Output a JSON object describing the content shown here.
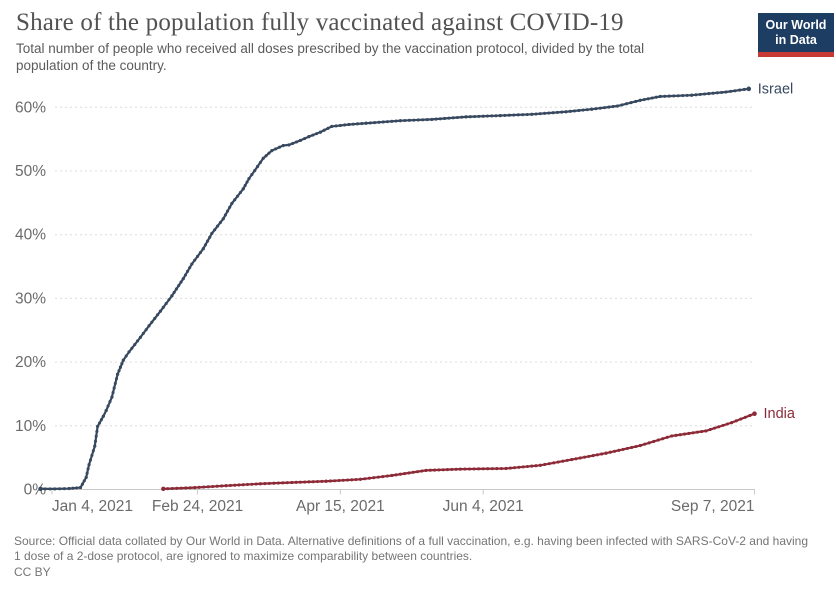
{
  "header": {
    "title": "Share of the population fully vaccinated against COVID-19",
    "subtitle": "Total number of people who received all doses prescribed by the vaccination protocol, divided by the total population of the country.",
    "logo": {
      "line1": "Our World",
      "line2": "in Data"
    }
  },
  "footer": {
    "source": "Source: Official data collated by Our World in Data. Alternative definitions of a full vaccination, e.g. having been infected with SARS-CoV-2 and having 1 dose of a 2-dose protocol, are ignored to maximize comparability between countries.",
    "license": "CC BY"
  },
  "colors": {
    "logo_background": "#1d3d63",
    "logo_bar": "#c73a33",
    "axis_text": "#6b6b6b",
    "gridline": "#dcdcdc",
    "axis_line": "#c8c8c8"
  },
  "chart_data": {
    "type": "line",
    "title": "Share of the population fully vaccinated against COVID-19",
    "xlabel": "",
    "ylabel": "",
    "grid": true,
    "legend_position": "end-of-line-labels",
    "day_zero": "2020-12-31",
    "x_axis": {
      "unit": "date",
      "ticks": [
        {
          "day": 4,
          "label": "Jan 4, 2021",
          "align": "start"
        },
        {
          "day": 55,
          "label": "Feb 24, 2021",
          "align": "middle"
        },
        {
          "day": 105,
          "label": "Apr 15, 2021",
          "align": "middle"
        },
        {
          "day": 155,
          "label": "Jun 4, 2021",
          "align": "middle"
        },
        {
          "day": 250,
          "label": "Sep 7, 2021",
          "align": "end"
        }
      ]
    },
    "y_axis": {
      "unit": "%",
      "ticks": [
        0,
        10,
        20,
        30,
        40,
        50,
        60
      ],
      "ylim": [
        0,
        66
      ]
    },
    "series": [
      {
        "name": "Israel",
        "color": "#37485f",
        "points": [
          [
            0,
            0.1
          ],
          [
            5,
            0.1
          ],
          [
            10,
            0.15
          ],
          [
            14,
            0.3
          ],
          [
            16,
            1.9
          ],
          [
            17,
            3.9
          ],
          [
            19,
            6.8
          ],
          [
            20,
            9.9
          ],
          [
            22,
            11.5
          ],
          [
            23,
            12.4
          ],
          [
            25,
            14.5
          ],
          [
            27,
            18.1
          ],
          [
            28,
            19.2
          ],
          [
            29,
            20.3
          ],
          [
            31,
            21.6
          ],
          [
            35,
            23.9
          ],
          [
            38,
            25.7
          ],
          [
            42,
            28
          ],
          [
            46,
            30.4
          ],
          [
            50,
            33.1
          ],
          [
            53,
            35.4
          ],
          [
            57,
            37.8
          ],
          [
            60,
            40.2
          ],
          [
            64,
            42.5
          ],
          [
            67,
            44.9
          ],
          [
            71,
            47.2
          ],
          [
            73,
            48.8
          ],
          [
            76,
            50.7
          ],
          [
            78,
            52
          ],
          [
            81,
            53.2
          ],
          [
            85,
            54
          ],
          [
            87,
            54.1
          ],
          [
            91,
            54.8
          ],
          [
            94,
            55.4
          ],
          [
            98,
            56.1
          ],
          [
            102,
            57
          ],
          [
            108,
            57.3
          ],
          [
            114,
            57.5
          ],
          [
            126,
            57.9
          ],
          [
            137,
            58.1
          ],
          [
            149,
            58.5
          ],
          [
            161,
            58.7
          ],
          [
            172,
            58.9
          ],
          [
            184,
            59.3
          ],
          [
            193,
            59.7
          ],
          [
            202,
            60.2
          ],
          [
            210,
            61.1
          ],
          [
            217,
            61.7
          ],
          [
            228,
            61.9
          ],
          [
            240,
            62.4
          ],
          [
            248,
            62.9
          ]
        ]
      },
      {
        "name": "India",
        "color": "#8c2b37",
        "points": [
          [
            43,
            0.1
          ],
          [
            54,
            0.3
          ],
          [
            65,
            0.6
          ],
          [
            77,
            0.9
          ],
          [
            88,
            1.1
          ],
          [
            100,
            1.3
          ],
          [
            112,
            1.6
          ],
          [
            123,
            2.2
          ],
          [
            135,
            3
          ],
          [
            147,
            3.2
          ],
          [
            163,
            3.3
          ],
          [
            175,
            3.8
          ],
          [
            186,
            4.7
          ],
          [
            198,
            5.7
          ],
          [
            210,
            6.9
          ],
          [
            221,
            8.4
          ],
          [
            233,
            9.2
          ],
          [
            242,
            10.5
          ],
          [
            250,
            11.9
          ]
        ]
      }
    ]
  }
}
